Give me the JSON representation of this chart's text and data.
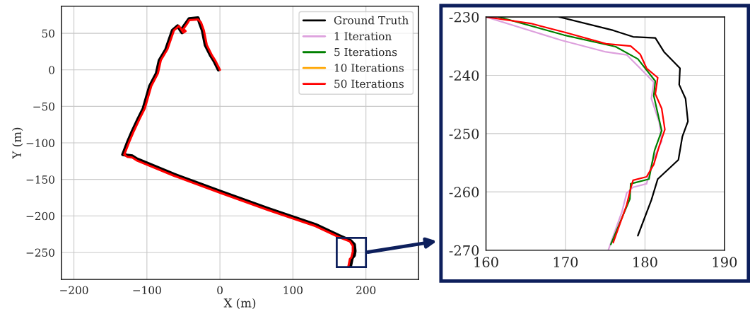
{
  "chart_data": [
    {
      "type": "line",
      "xlabel": "X (m)",
      "ylabel": "Y (m)",
      "xlim": [
        -217,
        272
      ],
      "ylim": [
        -287,
        87
      ],
      "xticks": [
        {
          "value": -200,
          "label": "−200"
        },
        {
          "value": -100,
          "label": "−100"
        },
        0,
        100,
        200
      ],
      "yticks": [
        {
          "value": -250,
          "label": "−250"
        },
        {
          "value": -200,
          "label": "−200"
        },
        {
          "value": -150,
          "label": "−150"
        },
        {
          "value": -100,
          "label": "−100"
        },
        {
          "value": -50,
          "label": "−50"
        },
        0,
        50
      ],
      "grid": true,
      "legend": "top right",
      "line_style": "solid",
      "marker": "none",
      "series": [
        {
          "name": "Ground Truth",
          "color": "#000000",
          "x": [
            -2,
            -8,
            -13,
            -20,
            -24,
            -28,
            -30,
            -42,
            -47,
            -52,
            -49,
            -52,
            -58,
            -65,
            -74,
            -83,
            -87,
            -96,
            -105,
            -112,
            -120,
            -126,
            -133,
            -127,
            -120,
            -114,
            -63,
            2,
            66,
            131,
            163,
            179,
            184,
            185,
            184,
            181,
            179
          ],
          "values": [
            0,
            12,
            20,
            34,
            54,
            65,
            71,
            70,
            63,
            56,
            53,
            51,
            60,
            54,
            28,
            13,
            -5,
            -22,
            -53,
            -67,
            -84,
            -98,
            -116,
            -117,
            -118,
            -122,
            -143,
            -167,
            -190,
            -212,
            -227,
            -234,
            -239,
            -248,
            -254,
            -258,
            -268
          ]
        },
        {
          "name": "1 Iteration",
          "color": "#dda0dd"
        },
        {
          "name": "5 Iterations",
          "color": "#008000"
        },
        {
          "name": "10 Iterations",
          "color": "#ffa500"
        },
        {
          "name": "50 Iterations",
          "color": "#ff0000",
          "x": [
            0,
            -6,
            -11,
            -18,
            -22,
            -26,
            -30,
            -42,
            -45,
            -50,
            -47,
            -50,
            -56,
            -63,
            -72,
            -81,
            -85,
            -94,
            -103,
            -110,
            -118,
            -124,
            -131,
            -127,
            -120,
            -114,
            -63,
            2,
            66,
            131,
            163,
            178,
            182,
            182,
            180,
            178,
            176
          ],
          "values": [
            0,
            12,
            20,
            34,
            54,
            65,
            69,
            68,
            63,
            56,
            53,
            51,
            60,
            54,
            28,
            13,
            -5,
            -22,
            -53,
            -67,
            -84,
            -98,
            -116,
            -119,
            -120,
            -124,
            -145,
            -169,
            -192,
            -214,
            -229,
            -235,
            -241,
            -249,
            -257,
            -259,
            -269
          ]
        }
      ]
    },
    {
      "type": "line",
      "xlim": [
        160,
        190
      ],
      "ylim": [
        -270,
        -230
      ],
      "xticks": [
        160,
        170,
        180,
        190
      ],
      "yticks": [
        -270,
        -260,
        -250,
        -240,
        -230
      ],
      "grid": true,
      "line_style": "solid",
      "marker": "none",
      "series": [
        {
          "color": "#000000",
          "x": [
            169.2,
            176,
            178.5,
            181.3,
            182.4,
            184.4,
            184.3,
            185.1,
            185.4,
            184.7,
            184.2,
            181.6,
            180.8,
            179.1
          ],
          "values": [
            -230,
            -232.3,
            -233.4,
            -233.6,
            -236,
            -238.8,
            -241.6,
            -244,
            -247.9,
            -250.5,
            -254.5,
            -257.8,
            -261.4,
            -267.5
          ]
        },
        {
          "color": "#dda0dd",
          "x": [
            160,
            169.5,
            175.1,
            177.7,
            179.1,
            181.1,
            180.8,
            181.8,
            182.1,
            180.9,
            180.2,
            178.5,
            177.7,
            177.1,
            175.4
          ],
          "values": [
            -230,
            -234,
            -236,
            -236.5,
            -238.4,
            -241.2,
            -244,
            -248.1,
            -251.3,
            -254.9,
            -258.6,
            -259.2,
            -260.2,
            -263.4,
            -269.9
          ]
        },
        {
          "color": "#008000",
          "x": [
            161.6,
            169.8,
            176.3,
            179.1,
            181.3,
            181.1,
            182.1,
            181.2,
            180.5,
            178.2,
            178.1,
            175.7
          ],
          "values": [
            -230,
            -233.1,
            -235.1,
            -237.2,
            -241,
            -243.5,
            -249.5,
            -252.9,
            -257.8,
            -258.6,
            -261.2,
            -269
          ]
        },
        {
          "color": "#ff0000",
          "x": [
            160,
            165.6,
            170.1,
            175.1,
            178.2,
            179.4,
            180.2,
            181.6,
            181.3,
            182.1,
            182.5,
            181.8,
            181.1,
            180.2,
            178.5,
            178.2,
            177.7,
            176
          ],
          "values": [
            -230,
            -231.1,
            -232.7,
            -234.6,
            -235,
            -236.4,
            -238.8,
            -240.4,
            -243.2,
            -245.7,
            -249.3,
            -252.1,
            -255.3,
            -257.4,
            -258,
            -259.4,
            -262.2,
            -268.7
          ]
        }
      ]
    }
  ]
}
